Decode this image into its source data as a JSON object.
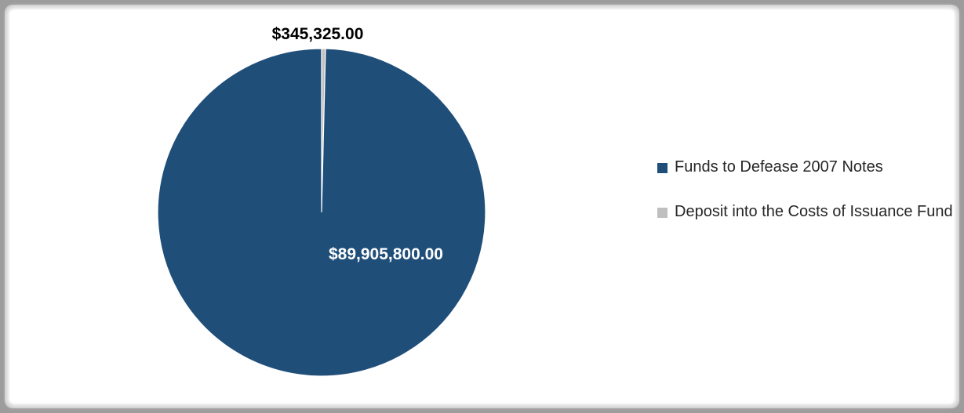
{
  "chart_data": {
    "type": "pie",
    "title": "",
    "legend_position": "right",
    "slices": [
      {
        "label": "Funds to Defease 2007 Notes",
        "value": 89905800.0,
        "value_label": "$89,905,800.00",
        "color": "#1f4e79",
        "label_color": "#ffffff"
      },
      {
        "label": "Deposit into the Costs of Issuance Fund",
        "value": 345325.0,
        "value_label": "$345,325.00",
        "color": "#bfbfbf",
        "label_color": "#000000"
      }
    ]
  }
}
